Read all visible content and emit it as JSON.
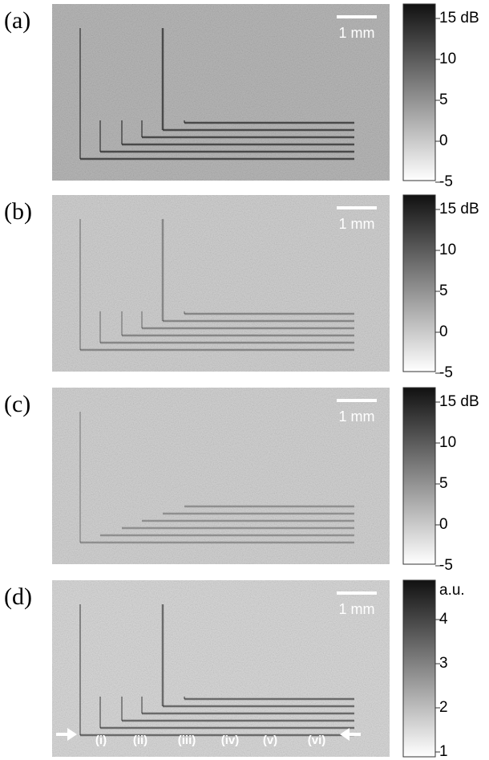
{
  "panels": [
    {
      "label": "(a)",
      "scale_bar": "1 mm",
      "colorbar": {
        "ticks": [
          {
            "value": 15,
            "label": "15 dB"
          },
          10,
          5,
          0,
          -5
        ]
      }
    },
    {
      "label": "(b)",
      "scale_bar": "1 mm",
      "colorbar": {
        "ticks": [
          {
            "value": 15,
            "label": "15 dB"
          },
          10,
          5,
          0,
          -5
        ]
      }
    },
    {
      "label": "(c)",
      "scale_bar": "1 mm",
      "colorbar": {
        "ticks": [
          {
            "value": 15,
            "label": "15 dB"
          },
          10,
          5,
          0,
          -5
        ]
      }
    },
    {
      "label": "(d)",
      "scale_bar": "1 mm",
      "colorbar": {
        "unit": "a.u.",
        "ticks": [
          4,
          3,
          2,
          1
        ]
      },
      "regions": [
        "(i)",
        "(ii)",
        "(iii)",
        "(iv)",
        "(v)",
        "(vi)"
      ]
    }
  ]
}
